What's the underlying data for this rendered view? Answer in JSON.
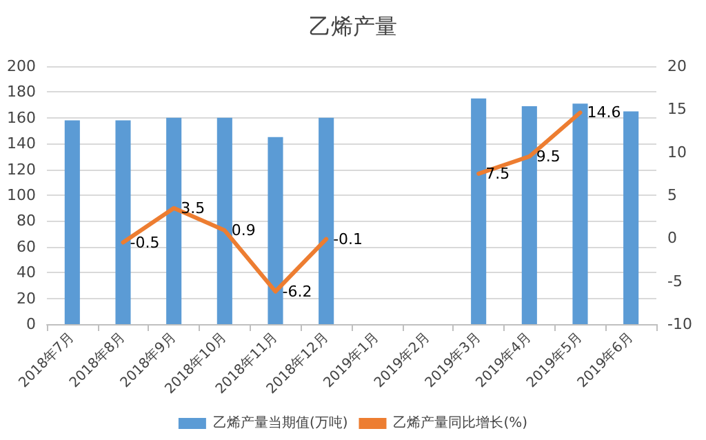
{
  "chart_data": {
    "type": "bar",
    "title": "乙烯产量",
    "categories": [
      "2018年7月",
      "2018年8月",
      "2018年9月",
      "2018年10月",
      "2018年11月",
      "2018年12月",
      "2019年1月",
      "2019年2月",
      "2019年3月",
      "2019年4月",
      "2019年5月",
      "2019年6月"
    ],
    "series": [
      {
        "name": "乙烯产量当期值(万吨)",
        "color": "#5b9bd5",
        "values": [
          158,
          158,
          160,
          160,
          145,
          160,
          null,
          null,
          175,
          169,
          171,
          165
        ]
      },
      {
        "name": "乙烯产量同比增长(%)",
        "type": "line",
        "axis": "y2",
        "color": "#ed7d31",
        "values": [
          null,
          -0.5,
          3.5,
          0.9,
          -6.2,
          -0.1,
          null,
          null,
          7.5,
          9.5,
          14.6,
          null
        ],
        "value_labels": [
          null,
          "-0.5",
          "3.5",
          "0.9",
          "-6.2",
          "-0.1",
          null,
          null,
          "7.5",
          "9.5",
          "14.6",
          null
        ]
      }
    ],
    "ylim": [
      0,
      200
    ],
    "yticks": [
      0,
      20,
      40,
      60,
      80,
      100,
      120,
      140,
      160,
      180,
      200
    ],
    "y2lim": [
      -10,
      20
    ],
    "y2ticks": [
      -10,
      -5,
      0,
      5,
      10,
      15,
      20
    ],
    "grid": "y",
    "legend": "bottom",
    "marker": "none",
    "line_style": "solid"
  }
}
